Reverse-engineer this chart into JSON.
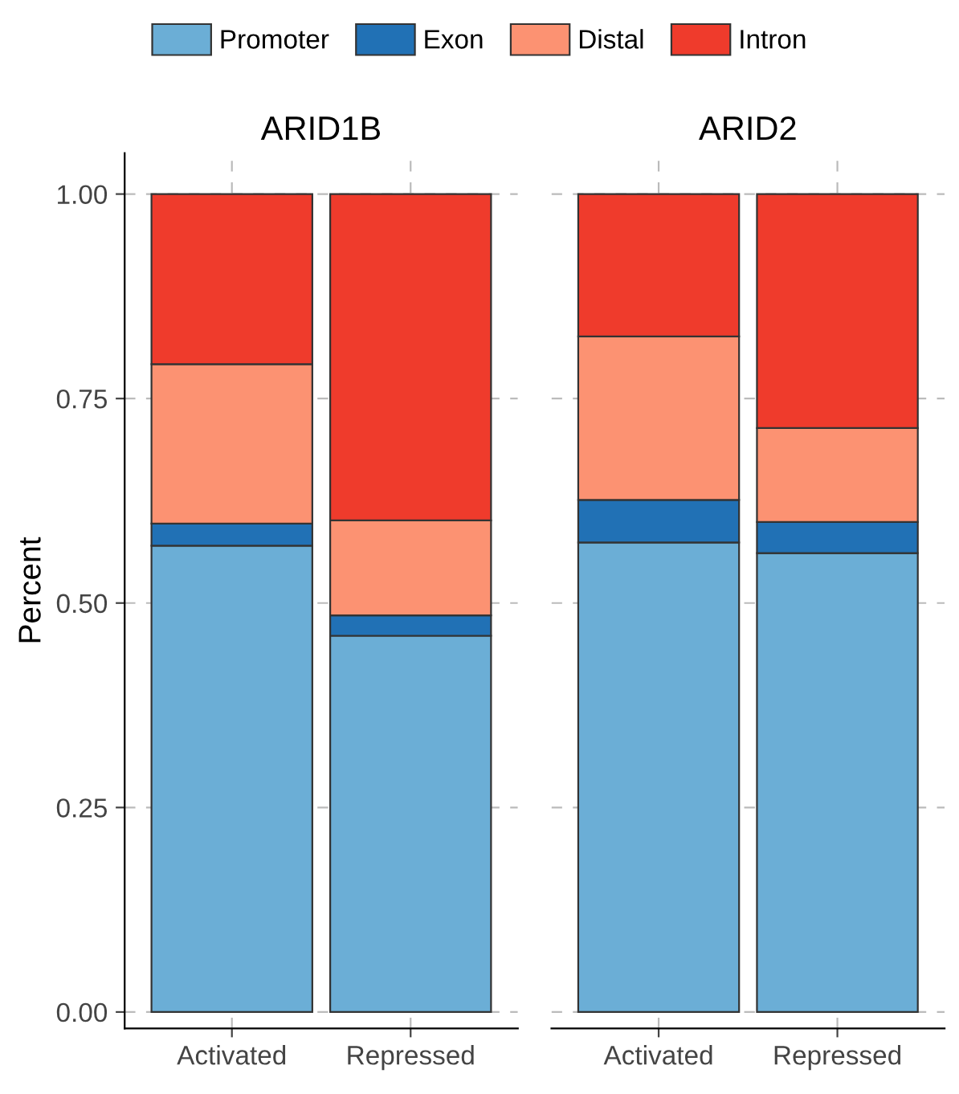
{
  "chart_data": [
    {
      "type": "bar",
      "title": "ARID1B",
      "ylabel": "Percent",
      "categories": [
        "Activated",
        "Repressed"
      ],
      "stacked": true,
      "ylim": [
        -0.02,
        1.05
      ],
      "yticks": [
        {
          "value": 0,
          "label": "0.00"
        },
        {
          "value": 0.25,
          "label": "0.25"
        },
        {
          "value": 0.5,
          "label": "0.50"
        },
        {
          "value": 0.75,
          "label": "0.75"
        },
        {
          "value": 1,
          "label": "1.00"
        }
      ],
      "grid": true,
      "legend": "top",
      "series": [
        {
          "name": "Promoter",
          "color": "#6baed6",
          "values": [
            0.57,
            0.46
          ]
        },
        {
          "name": "Exon",
          "color": "#2171b5",
          "values": [
            0.027,
            0.025
          ]
        },
        {
          "name": "Distal",
          "color": "#fc9272",
          "values": [
            0.195,
            0.116
          ]
        },
        {
          "name": "Intron",
          "color": "#ef3b2c",
          "values": [
            0.208,
            0.399
          ]
        }
      ]
    },
    {
      "type": "bar",
      "title": "ARID2",
      "categories": [
        "Activated",
        "Repressed"
      ],
      "stacked": true,
      "ylim": [
        -0.02,
        1.05
      ],
      "yticks": [
        {
          "value": 0,
          "label": null
        },
        {
          "value": 0.25,
          "label": null
        },
        {
          "value": 0.5,
          "label": null
        },
        {
          "value": 0.75,
          "label": null
        },
        {
          "value": 1,
          "label": null
        }
      ],
      "grid": true,
      "tick_labels": "x",
      "series": [
        {
          "color": "#6baed6",
          "values": [
            0.574,
            0.561
          ]
        },
        {
          "color": "#2171b5",
          "values": [
            0.052,
            0.038
          ]
        },
        {
          "color": "#fc9272",
          "values": [
            0.2,
            0.115
          ]
        },
        {
          "color": "#ef3b2c",
          "values": [
            0.174,
            0.286
          ]
        }
      ]
    }
  ]
}
